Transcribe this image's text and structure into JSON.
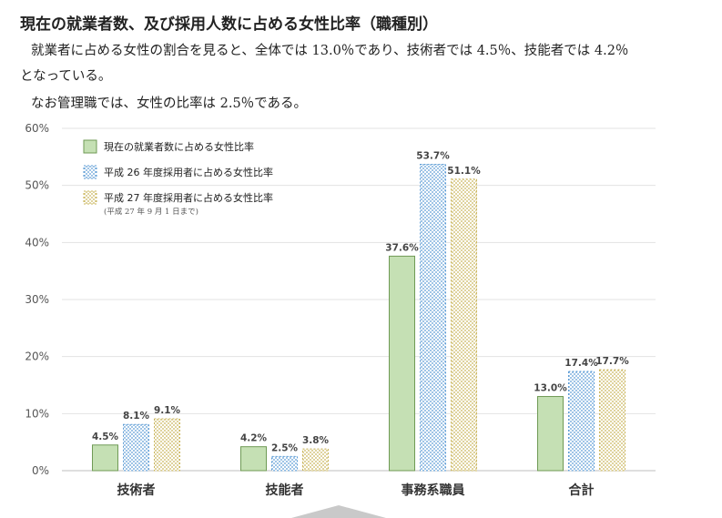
{
  "title": "現在の就業者数、及び採用人数に占める女性比率（職種別）",
  "paragraphs": [
    "就業者に占める女性の割合を見ると、全体では 13.0％であり、技術者では 4.5％、技能者では 4.2％",
    "となっている。",
    "なお管理職では、女性の比率は 2.5％である。"
  ],
  "chart_data": {
    "type": "bar",
    "categories": [
      "技術者",
      "技能者",
      "事務系職員",
      "合計"
    ],
    "ylim": [
      0,
      60
    ],
    "yticks": [
      "0%",
      "10%",
      "20%",
      "30%",
      "40%",
      "50%",
      "60%"
    ],
    "grid": true,
    "legend_position": "top-left",
    "legend_note": "(平成 27 年 9 月 1 日まで)",
    "series": [
      {
        "name": "現在の就業者数に占める女性比率",
        "values": [
          4.5,
          4.2,
          37.6,
          13.0
        ],
        "labels": [
          "4.5%",
          "4.2%",
          "37.6%",
          "13.0%"
        ],
        "color": "#c5e0b4",
        "stroke": "#6f9a55",
        "pattern": "solid"
      },
      {
        "name": "平成 26 年度採用者に占める女性比率",
        "values": [
          8.1,
          2.5,
          53.7,
          17.4
        ],
        "labels": [
          "8.1%",
          "2.5%",
          "53.7%",
          "17.4%"
        ],
        "color": "#5b9bd5",
        "stroke": "#5b9bd5",
        "pattern": "dots"
      },
      {
        "name": "平成 27 年度採用者に占める女性比率",
        "values": [
          9.1,
          3.8,
          51.1,
          17.7
        ],
        "labels": [
          "9.1%",
          "3.8%",
          "51.1%",
          "17.7%"
        ],
        "color": "#c9b458",
        "stroke": "#c9b458",
        "pattern": "dots"
      }
    ]
  }
}
